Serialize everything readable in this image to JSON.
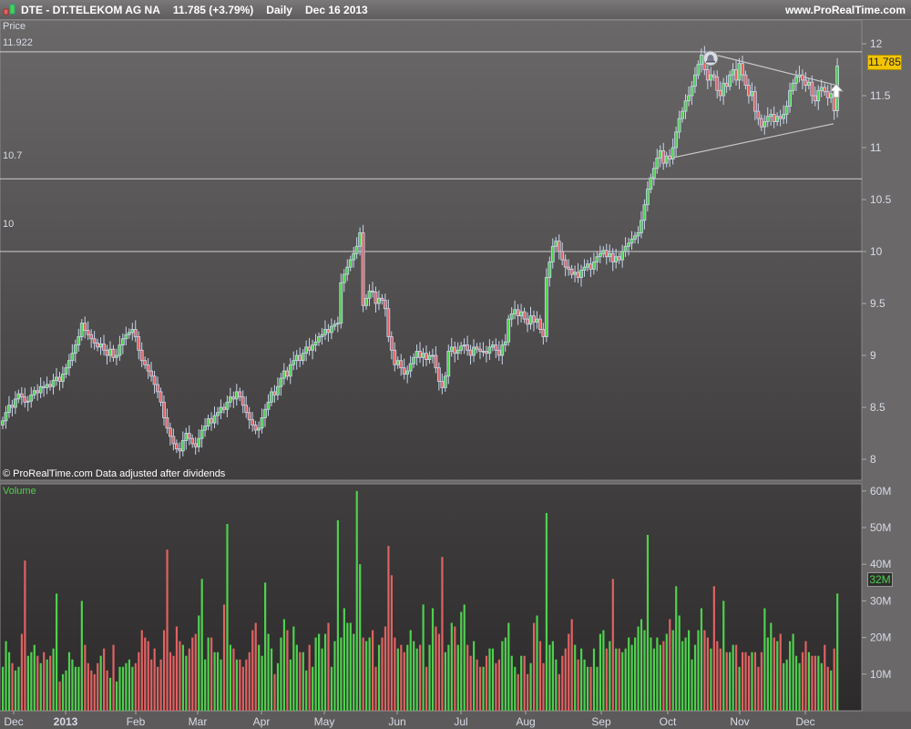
{
  "header": {
    "symbol": "DTE - DT.TELEKOM AG NA",
    "quote": "11.785 (+3.79%)",
    "period": "Daily",
    "date": "Dec 16 2013",
    "site": "www.ProRealTime.com",
    "icon": "candlestick-icon"
  },
  "price_panel": {
    "title": "Price",
    "footer": "© ProRealTime.com  Data adjusted after dividends",
    "hlines": [
      {
        "value": 11.922,
        "label": "11.922"
      },
      {
        "value": 10.7,
        "label": "10.7"
      },
      {
        "value": 10,
        "label": "10"
      }
    ],
    "last_price_label": "11.785",
    "last_price_color": "#f2c400",
    "icons": [
      "bell-alert-icon",
      "up-arrow-icon"
    ]
  },
  "volume_panel": {
    "title": "Volume",
    "last_volume_label": "32M"
  },
  "colors": {
    "up": "#4fd04f",
    "down": "#e06262",
    "candle_outline": "#c8d6ec"
  },
  "chart_data": [
    {
      "type": "candlestick",
      "title": "Price",
      "ylim": [
        8,
        12
      ],
      "y_ticks": [
        "12",
        "11.5",
        "11",
        "10.5",
        "10",
        "9.5",
        "9",
        "8.5",
        "8"
      ],
      "x_tick_labels": [
        "Dec",
        "2013",
        "Feb",
        "Mar",
        "Apr",
        "May",
        "Jun",
        "Jul",
        "Aug",
        "Sep",
        "Oct",
        "Nov",
        "Dec"
      ],
      "trendlines": [
        {
          "name": "",
          "from": [
            11.92,
            "Oct"
          ],
          "to": [
            11.6,
            "Dec"
          ]
        },
        {
          "name": "",
          "from": [
            10.88,
            "Oct"
          ],
          "to": [
            11.23,
            "Dec"
          ]
        }
      ],
      "close": [
        8.37,
        8.45,
        8.52,
        8.5,
        8.58,
        8.63,
        8.6,
        8.55,
        8.56,
        8.62,
        8.66,
        8.64,
        8.7,
        8.69,
        8.72,
        8.7,
        8.76,
        8.79,
        8.75,
        8.82,
        8.88,
        8.95,
        9.02,
        9.1,
        9.18,
        9.31,
        9.24,
        9.2,
        9.16,
        9.12,
        9.08,
        9.11,
        9.05,
        9.0,
        9.06,
        8.98,
        9.0,
        9.1,
        9.16,
        9.2,
        9.22,
        9.25,
        9.18,
        9.05,
        8.95,
        8.91,
        8.85,
        8.8,
        8.72,
        8.65,
        8.55,
        8.4,
        8.3,
        8.22,
        8.15,
        8.1,
        8.08,
        8.18,
        8.25,
        8.2,
        8.15,
        8.12,
        8.2,
        8.28,
        8.32,
        8.39,
        8.35,
        8.42,
        8.45,
        8.5,
        8.48,
        8.55,
        8.6,
        8.58,
        8.65,
        8.6,
        8.52,
        8.45,
        8.38,
        8.33,
        8.28,
        8.3,
        8.4,
        8.48,
        8.55,
        8.65,
        8.62,
        8.7,
        8.78,
        8.85,
        8.8,
        8.91,
        8.95,
        9.0,
        8.95,
        9.02,
        9.08,
        9.05,
        9.1,
        9.13,
        9.18,
        9.2,
        9.25,
        9.22,
        9.28,
        9.3,
        9.31,
        9.7,
        9.78,
        9.85,
        9.92,
        9.98,
        10.05,
        10.18,
        9.48,
        9.55,
        9.62,
        9.61,
        9.5,
        9.55,
        9.53,
        9.45,
        9.18,
        9.05,
        8.91,
        8.95,
        8.88,
        8.82,
        8.85,
        8.92,
        8.98,
        9.04,
        8.98,
        9.02,
        8.96,
        9.0,
        9.0,
        8.88,
        8.75,
        8.69,
        8.8,
        9.04,
        9.08,
        9.02,
        9.05,
        9.09,
        9.1,
        9.05,
        9.0,
        9.08,
        9.06,
        9.04,
        9.04,
        9.02,
        9.08,
        9.1,
        9.05,
        9.0,
        9.1,
        9.13,
        9.35,
        9.4,
        9.44,
        9.38,
        9.42,
        9.35,
        9.3,
        9.38,
        9.32,
        9.35,
        9.25,
        9.18,
        9.75,
        9.9,
        10.05,
        10.1,
        10.0,
        9.92,
        9.85,
        9.83,
        9.78,
        9.8,
        9.75,
        9.82,
        9.85,
        9.88,
        9.83,
        9.9,
        9.95,
        9.98,
        10.01,
        9.95,
        9.98,
        9.9,
        9.95,
        9.92,
        10.0,
        10.05,
        10.08,
        10.12,
        10.15,
        10.18,
        10.3,
        10.45,
        10.6,
        10.71,
        10.8,
        10.9,
        10.97,
        10.85,
        10.92,
        10.89,
        11.0,
        11.15,
        11.28,
        11.35,
        11.45,
        11.5,
        11.59,
        11.7,
        11.8,
        11.89,
        11.75,
        11.65,
        11.7,
        11.68,
        11.55,
        11.5,
        11.62,
        11.59,
        11.7,
        11.75,
        11.65,
        11.81,
        11.7,
        11.6,
        11.5,
        11.54,
        11.35,
        11.28,
        11.2,
        11.25,
        11.3,
        11.32,
        11.25,
        11.3,
        11.28,
        11.32,
        11.4,
        11.55,
        11.62,
        11.68,
        11.7,
        11.65,
        11.6,
        11.63,
        11.5,
        11.45,
        11.55,
        11.58,
        11.54,
        11.48,
        11.52,
        11.355,
        11.785
      ]
    },
    {
      "type": "bar",
      "title": "Volume",
      "ylabel": "",
      "ylim": [
        0,
        60
      ],
      "y_ticks": [
        "60M",
        "50M",
        "40M",
        "30M",
        "20M",
        "10M"
      ],
      "unit": "M",
      "values": [
        12,
        19,
        16,
        13,
        11,
        12,
        21,
        41,
        15,
        16,
        18,
        15,
        13,
        16,
        14,
        15,
        17,
        32,
        8,
        10,
        11,
        16,
        14,
        12,
        12,
        30,
        18,
        13,
        11,
        10,
        13,
        15,
        17,
        11,
        9,
        18,
        8,
        12,
        12,
        13,
        14,
        12,
        13,
        16,
        22,
        20,
        19,
        14,
        17,
        12,
        14,
        22,
        44,
        16,
        15,
        23,
        19,
        18,
        15,
        17,
        20,
        21,
        26,
        36,
        14,
        20,
        20,
        16,
        16,
        14,
        29,
        51,
        18,
        17,
        14,
        14,
        12,
        14,
        16,
        22,
        24,
        18,
        15,
        35,
        21,
        17,
        10,
        13,
        20,
        25,
        22,
        14,
        23,
        18,
        16,
        16,
        11,
        18,
        12,
        20,
        21,
        17,
        21,
        24,
        12,
        19,
        52,
        20,
        28,
        24,
        24,
        21,
        60,
        40,
        20,
        19,
        20,
        22,
        12,
        18,
        20,
        23,
        45,
        37,
        20,
        17,
        18,
        16,
        18,
        22,
        19,
        17,
        18,
        29,
        12,
        18,
        28,
        23,
        21,
        42,
        16,
        18,
        24,
        23,
        18,
        27,
        29,
        18,
        15,
        19,
        14,
        12,
        12,
        15,
        17,
        17,
        13,
        14,
        19,
        20,
        24,
        15,
        12,
        10,
        15,
        15,
        10,
        13,
        24,
        26,
        19,
        13,
        54,
        18,
        19,
        14,
        10,
        15,
        17,
        21,
        25,
        18,
        14,
        17,
        14,
        12,
        12,
        17,
        12,
        21,
        22,
        17,
        19,
        36,
        17,
        17,
        16,
        17,
        20,
        18,
        20,
        23,
        25,
        22,
        48,
        20,
        17,
        20,
        18,
        19,
        21,
        25,
        22,
        34,
        26,
        19,
        20,
        22,
        14,
        18,
        22,
        28,
        22,
        20,
        17,
        34,
        19,
        17,
        30,
        16,
        16,
        18,
        18,
        12,
        16,
        16,
        15,
        16,
        16,
        12,
        16,
        28,
        20,
        24,
        20,
        19,
        21,
        13,
        14,
        19,
        21,
        15,
        13,
        16,
        19,
        16,
        15,
        15,
        15,
        13,
        18,
        12,
        11,
        17,
        32
      ]
    }
  ]
}
